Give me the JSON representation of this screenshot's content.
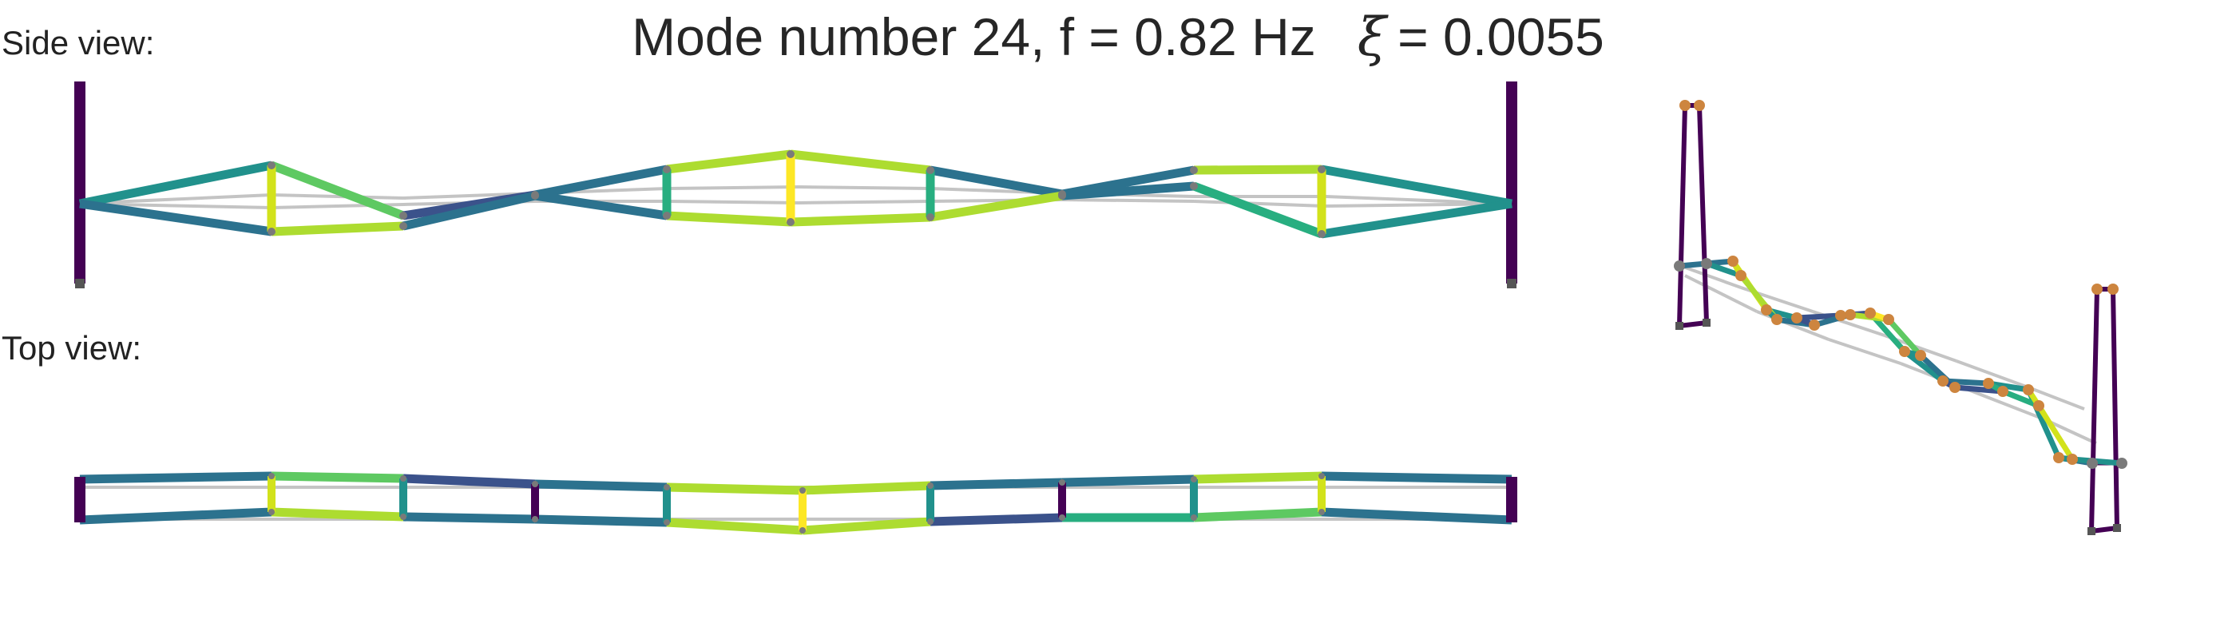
{
  "title": {
    "prefix": "Mode number 24, f = 0.82 Hz",
    "damping_symbol": "ξ",
    "damping_text": "= 0.0055"
  },
  "labels": {
    "side_view": "Side view:",
    "top_view": "Top view:"
  },
  "colors": {
    "undeformed": "#c4c4c4",
    "tower": "#440154",
    "node_iso": "#cd853f",
    "node_support": "#7a7a7a",
    "viridis": [
      "#3b528b",
      "#2c728e",
      "#21918c",
      "#28ae80",
      "#5ec962",
      "#addc30",
      "#d2e21b",
      "#fde725"
    ]
  },
  "chart_data": {
    "type": "mode_shape_diagram",
    "mode_number": 24,
    "frequency_hz": 0.82,
    "damping_ratio": 0.0055,
    "views": [
      "side",
      "top",
      "isometric"
    ]
  }
}
